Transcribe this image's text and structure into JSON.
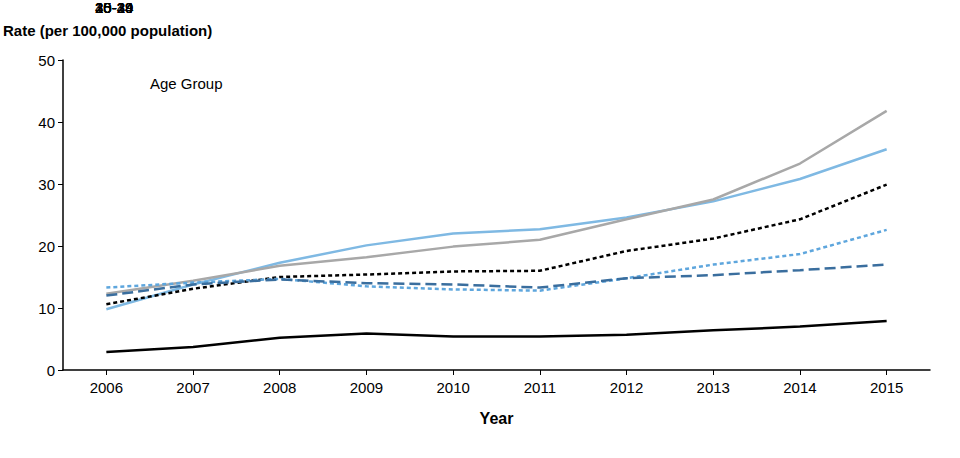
{
  "chart_data": {
    "type": "line",
    "y_label": "Rate (per 100,000 population)",
    "x_label": "Year",
    "legend_title": "Age Group",
    "categories": [
      "2006",
      "2007",
      "2008",
      "2009",
      "2010",
      "2011",
      "2012",
      "2013",
      "2014",
      "2015"
    ],
    "series": [
      {
        "name": "15-19",
        "color": "#000000",
        "line_style": "solid",
        "values": [
          2.9,
          3.7,
          5.2,
          5.9,
          5.4,
          5.4,
          5.7,
          6.4,
          7.0,
          7.9
        ]
      },
      {
        "name": "20-24",
        "color": "#7fb9e3",
        "line_style": "solid",
        "values": [
          9.8,
          13.8,
          17.3,
          20.1,
          22.0,
          22.7,
          24.6,
          27.2,
          30.8,
          35.6
        ]
      },
      {
        "name": "25-29",
        "color": "#a8a8a8",
        "line_style": "solid",
        "values": [
          12.3,
          14.4,
          16.8,
          18.2,
          19.9,
          21.0,
          24.3,
          27.5,
          33.3,
          41.8
        ]
      },
      {
        "name": "30-34",
        "color": "#000000",
        "line_style": "dotted",
        "values": [
          10.6,
          13.1,
          15.0,
          15.4,
          15.9,
          16.0,
          19.2,
          21.2,
          24.3,
          29.9
        ]
      },
      {
        "name": "35-39",
        "color": "#5ea6dd",
        "line_style": "dotted",
        "values": [
          13.3,
          14.1,
          14.7,
          13.5,
          13.0,
          12.8,
          14.8,
          17.0,
          18.7,
          22.6
        ]
      },
      {
        "name": "40-44",
        "color": "#3a6e9e",
        "line_style": "dashed",
        "values": [
          12.0,
          13.8,
          14.6,
          14.0,
          13.8,
          13.3,
          14.8,
          15.3,
          16.1,
          17.0
        ]
      }
    ],
    "ylim": [
      0,
      50
    ],
    "yticks": [
      0,
      10,
      20,
      30,
      40,
      50
    ],
    "grid": false,
    "legend": "top-left"
  }
}
